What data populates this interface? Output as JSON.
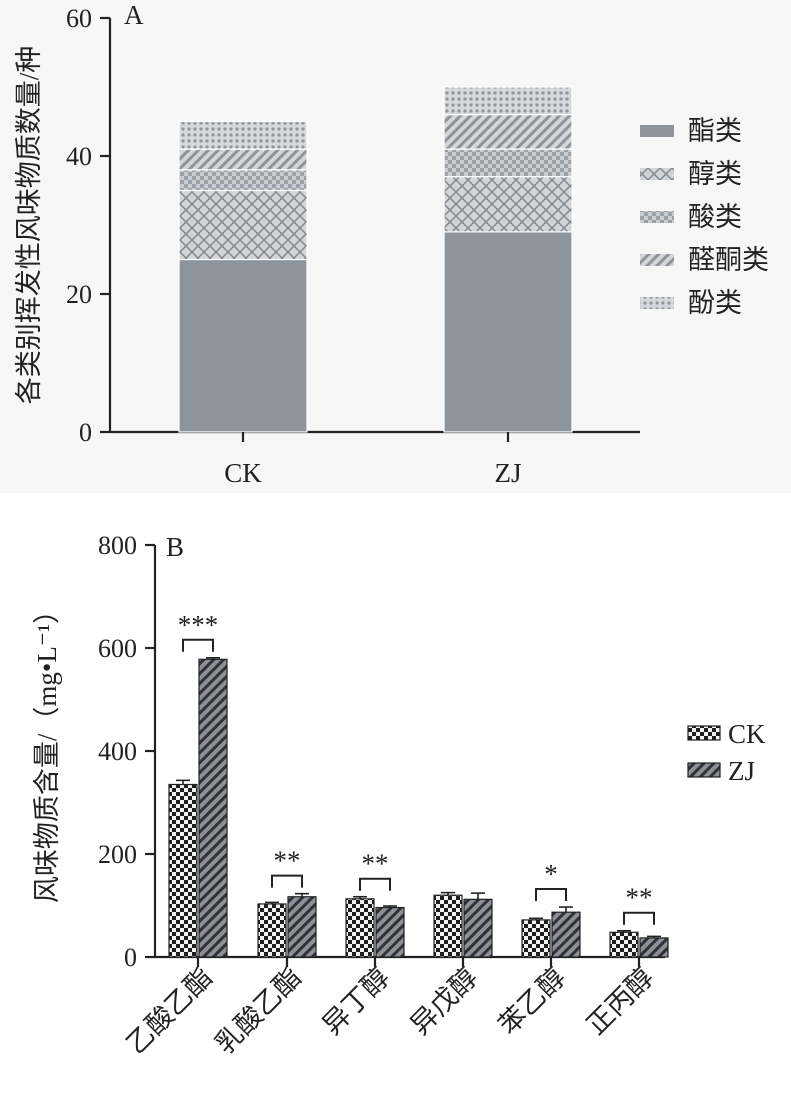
{
  "colors": {
    "solid": "#8e949b",
    "pattern_fill": "#cfd1d4",
    "pattern_line": "#7d838a",
    "dark": "#222222",
    "zj_fill": "#777c82"
  },
  "chart_data": [
    {
      "type": "bar",
      "stacked": true,
      "panel_label": "A",
      "categories": [
        "CK",
        "ZJ"
      ],
      "ylabel": "各类别挥发性风味物质数量/种",
      "ylim": [
        0,
        60
      ],
      "yticks": [
        "0",
        "20",
        "40",
        "60"
      ],
      "grid": false,
      "legend_position": "right",
      "series": [
        {
          "name": "酯类",
          "values": [
            25,
            29
          ],
          "pattern": "solid"
        },
        {
          "name": "醇类",
          "values": [
            10,
            8
          ],
          "pattern": "crosshatch"
        },
        {
          "name": "酸类",
          "values": [
            3,
            4
          ],
          "pattern": "checker"
        },
        {
          "name": "醛酮类",
          "values": [
            3,
            5
          ],
          "pattern": "diagonal"
        },
        {
          "name": "酚类",
          "values": [
            4,
            4
          ],
          "pattern": "dots"
        }
      ]
    },
    {
      "type": "bar",
      "panel_label": "B",
      "categories": [
        "乙酸乙酯",
        "乳酸乙酯",
        "异丁醇",
        "异戊醇",
        "苯乙醇",
        "正丙醇"
      ],
      "ylabel": "风味物质含量/（mg•L⁻¹）",
      "ylim": [
        0,
        800
      ],
      "yticks": [
        "0",
        "200",
        "400",
        "600",
        "800"
      ],
      "grid": false,
      "legend_position": "right",
      "series": [
        {
          "name": "CK",
          "values": [
            335,
            103,
            113,
            120,
            72,
            48
          ],
          "errors": [
            8,
            3,
            4,
            5,
            3,
            3
          ],
          "pattern": "checker"
        },
        {
          "name": "ZJ",
          "values": [
            578,
            117,
            96,
            112,
            87,
            37
          ],
          "errors": [
            3,
            6,
            3,
            12,
            10,
            3
          ],
          "pattern": "diagonal"
        }
      ],
      "significance": [
        "***",
        "**",
        "**",
        "",
        "*",
        "**"
      ]
    }
  ]
}
